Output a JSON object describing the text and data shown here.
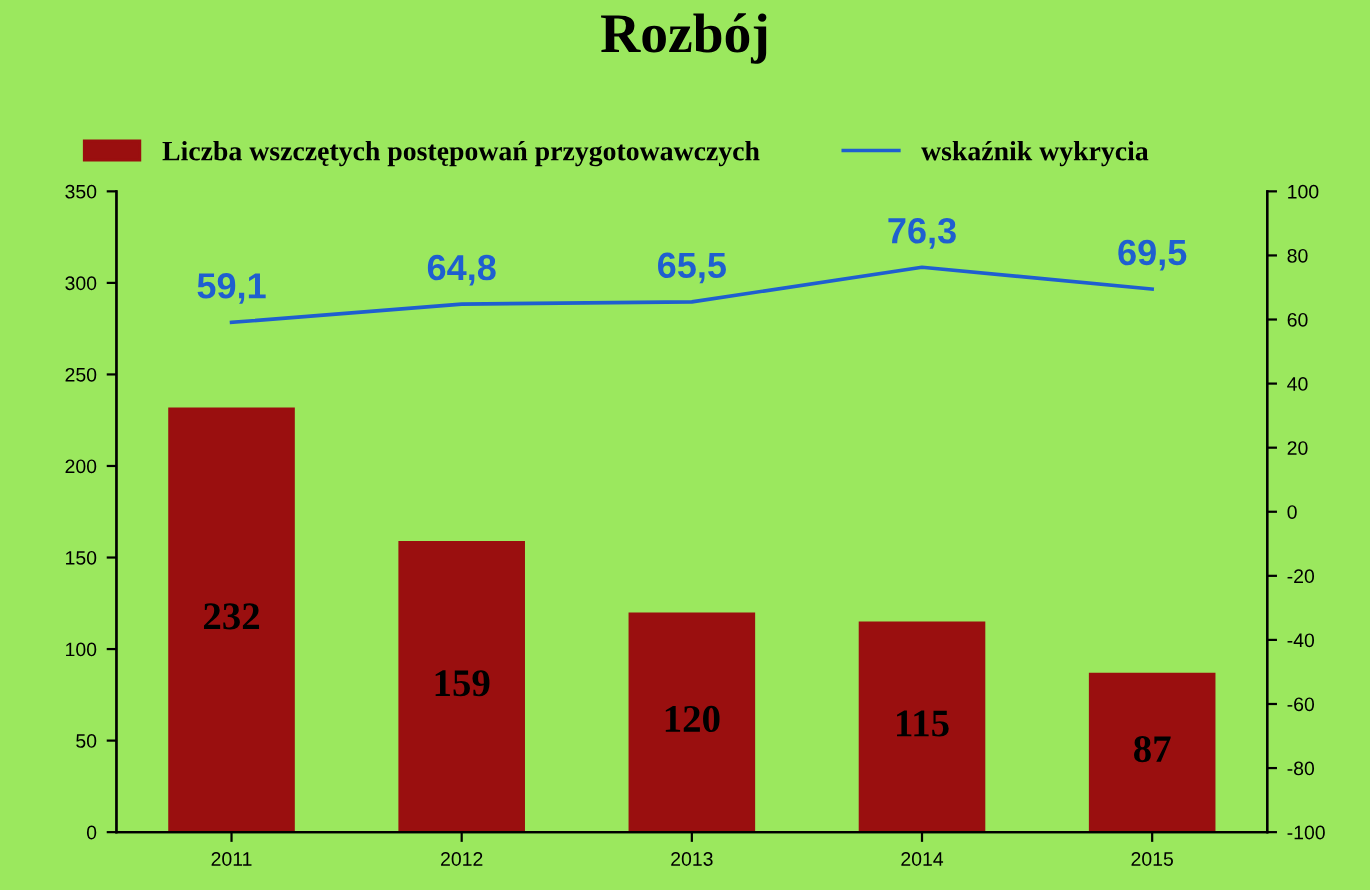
{
  "chart_data": {
    "type": "bar",
    "title": "Rozbój",
    "categories": [
      "2011",
      "2012",
      "2013",
      "2014",
      "2015"
    ],
    "series": [
      {
        "name": "Liczba wszczętych postępowań przygotowawczych",
        "color": "#9a0f0f",
        "values": [
          232,
          159,
          120,
          115,
          87
        ]
      },
      {
        "name": "wskaźnik wykrycia",
        "type": "line",
        "axis": "y2",
        "color": "#1f5fd0",
        "values": [
          59.1,
          64.8,
          65.5,
          76.3,
          69.5
        ],
        "value_labels": [
          "59,1",
          "64,8",
          "65,5",
          "76,3",
          "69,5"
        ]
      }
    ],
    "ylim": [
      0,
      350
    ],
    "yticks": [
      0,
      50,
      100,
      150,
      200,
      250,
      300,
      350
    ],
    "y2lim": [
      -100,
      100
    ],
    "y2ticks": [
      -100,
      -80,
      -60,
      -40,
      -20,
      0,
      20,
      40,
      60,
      80,
      100
    ],
    "data_labels": true,
    "legend": "top",
    "grid": false
  }
}
